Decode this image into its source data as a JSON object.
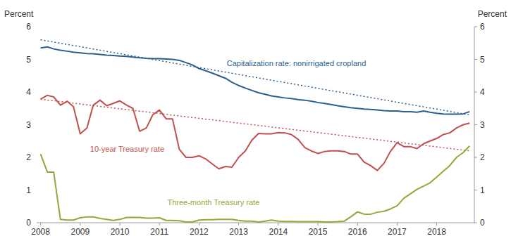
{
  "chart_data": {
    "type": "line",
    "ylabel": "Percent",
    "y2label": "Percent",
    "xlim": [
      2007.9,
      2018.95
    ],
    "xticks": [
      2008,
      2009,
      2010,
      2011,
      2012,
      2013,
      2014,
      2015,
      2016,
      2017,
      2018
    ],
    "ylim": [
      0,
      6
    ],
    "yticks": [
      0,
      1,
      2,
      3,
      4,
      5,
      6
    ],
    "y2lim": [
      0,
      6
    ],
    "y2ticks": [
      0,
      1,
      2,
      3,
      4,
      5,
      6
    ],
    "grid": false,
    "series": [
      {
        "color": "#2b5f8e",
        "line_style": "solid",
        "x": [
          2008.0,
          2008.17,
          2008.33,
          2008.5,
          2008.67,
          2008.83,
          2009.0,
          2009.17,
          2009.33,
          2009.5,
          2009.67,
          2009.83,
          2010.0,
          2010.17,
          2010.33,
          2010.5,
          2010.67,
          2010.83,
          2011.0,
          2011.17,
          2011.33,
          2011.5,
          2011.67,
          2011.83,
          2012.0,
          2012.17,
          2012.33,
          2012.5,
          2012.67,
          2012.83,
          2013.0,
          2013.17,
          2013.33,
          2013.5,
          2013.67,
          2013.83,
          2014.0,
          2014.17,
          2014.33,
          2014.5,
          2014.67,
          2014.83,
          2015.0,
          2015.17,
          2015.33,
          2015.5,
          2015.67,
          2015.83,
          2016.0,
          2016.17,
          2016.33,
          2016.5,
          2016.67,
          2016.83,
          2017.0,
          2017.17,
          2017.33,
          2017.5,
          2017.67,
          2017.83,
          2018.0,
          2018.17,
          2018.33,
          2018.5,
          2018.67,
          2018.83
        ],
        "values": [
          5.35,
          5.38,
          5.32,
          5.28,
          5.25,
          5.22,
          5.2,
          5.18,
          5.17,
          5.15,
          5.13,
          5.12,
          5.1,
          5.09,
          5.07,
          5.05,
          5.03,
          5.02,
          5.02,
          5.01,
          5.0,
          4.97,
          4.9,
          4.83,
          4.72,
          4.65,
          4.58,
          4.5,
          4.42,
          4.3,
          4.2,
          4.12,
          4.05,
          3.98,
          3.93,
          3.88,
          3.85,
          3.82,
          3.8,
          3.77,
          3.75,
          3.72,
          3.68,
          3.65,
          3.62,
          3.58,
          3.55,
          3.52,
          3.5,
          3.48,
          3.47,
          3.45,
          3.43,
          3.42,
          3.42,
          3.4,
          3.4,
          3.38,
          3.42,
          3.38,
          3.35,
          3.33,
          3.32,
          3.32,
          3.33,
          3.4
        ]
      },
      {
        "color": "#2b5f8e",
        "line_style": "dotted",
        "x": [
          2008.0,
          2018.83
        ],
        "values": [
          5.6,
          3.3
        ]
      },
      {
        "color": "#c0504d",
        "line_style": "solid",
        "x": [
          2008.0,
          2008.17,
          2008.33,
          2008.5,
          2008.67,
          2008.83,
          2009.0,
          2009.17,
          2009.33,
          2009.5,
          2009.67,
          2009.83,
          2010.0,
          2010.17,
          2010.33,
          2010.5,
          2010.67,
          2010.83,
          2011.0,
          2011.17,
          2011.33,
          2011.5,
          2011.67,
          2011.83,
          2012.0,
          2012.17,
          2012.33,
          2012.5,
          2012.67,
          2012.83,
          2013.0,
          2013.17,
          2013.33,
          2013.5,
          2013.67,
          2013.83,
          2014.0,
          2014.17,
          2014.33,
          2014.5,
          2014.67,
          2014.83,
          2015.0,
          2015.17,
          2015.33,
          2015.5,
          2015.67,
          2015.83,
          2016.0,
          2016.17,
          2016.33,
          2016.5,
          2016.67,
          2016.83,
          2017.0,
          2017.17,
          2017.33,
          2017.5,
          2017.67,
          2017.83,
          2018.0,
          2018.17,
          2018.33,
          2018.5,
          2018.67,
          2018.83
        ],
        "values": [
          3.78,
          3.9,
          3.85,
          3.6,
          3.72,
          3.55,
          2.72,
          2.9,
          3.6,
          3.75,
          3.58,
          3.65,
          3.73,
          3.6,
          3.5,
          2.8,
          2.9,
          3.3,
          3.45,
          3.18,
          3.18,
          2.25,
          2.0,
          2.0,
          2.05,
          1.95,
          1.8,
          1.65,
          1.72,
          1.7,
          2.0,
          2.2,
          2.52,
          2.73,
          2.72,
          2.72,
          2.76,
          2.75,
          2.7,
          2.55,
          2.3,
          2.2,
          2.12,
          2.18,
          2.2,
          2.2,
          2.18,
          2.1,
          2.1,
          1.85,
          1.75,
          1.6,
          1.82,
          2.18,
          2.45,
          2.33,
          2.33,
          2.27,
          2.42,
          2.5,
          2.58,
          2.7,
          2.75,
          2.9,
          3.0,
          3.05
        ]
      },
      {
        "color": "#c0504d",
        "line_style": "dotted",
        "x": [
          2008.0,
          2018.83
        ],
        "values": [
          3.78,
          2.2
        ]
      },
      {
        "color": "#8faa3a",
        "line_style": "solid",
        "x": [
          2008.0,
          2008.17,
          2008.33,
          2008.5,
          2008.67,
          2008.83,
          2009.0,
          2009.17,
          2009.33,
          2009.5,
          2009.67,
          2009.83,
          2010.0,
          2010.17,
          2010.33,
          2010.5,
          2010.67,
          2010.83,
          2011.0,
          2011.17,
          2011.33,
          2011.5,
          2011.67,
          2011.83,
          2012.0,
          2012.17,
          2012.33,
          2012.5,
          2012.67,
          2012.83,
          2013.0,
          2013.17,
          2013.33,
          2013.5,
          2013.67,
          2013.83,
          2014.0,
          2014.17,
          2014.33,
          2014.5,
          2014.67,
          2014.83,
          2015.0,
          2015.17,
          2015.33,
          2015.5,
          2015.67,
          2015.83,
          2016.0,
          2016.17,
          2016.33,
          2016.5,
          2016.67,
          2016.83,
          2017.0,
          2017.17,
          2017.33,
          2017.5,
          2017.67,
          2017.83,
          2018.0,
          2018.17,
          2018.33,
          2018.5,
          2018.67,
          2018.83
        ],
        "values": [
          2.1,
          1.55,
          1.55,
          0.1,
          0.08,
          0.08,
          0.15,
          0.18,
          0.18,
          0.13,
          0.1,
          0.07,
          0.1,
          0.16,
          0.16,
          0.16,
          0.14,
          0.14,
          0.15,
          0.07,
          0.07,
          0.06,
          0.02,
          0.02,
          0.08,
          0.09,
          0.09,
          0.1,
          0.1,
          0.1,
          0.07,
          0.05,
          0.05,
          0.02,
          0.05,
          0.08,
          0.05,
          0.04,
          0.04,
          0.03,
          0.03,
          0.03,
          0.03,
          0.02,
          0.02,
          0.03,
          0.05,
          0.18,
          0.33,
          0.26,
          0.26,
          0.32,
          0.35,
          0.42,
          0.52,
          0.75,
          0.88,
          1.02,
          1.12,
          1.22,
          1.4,
          1.58,
          1.75,
          2.0,
          2.15,
          2.35
        ]
      }
    ],
    "annotations": [
      {
        "text": "Capitalization rate: nonirrigated cropland",
        "x": 2012.7,
        "y": 4.88,
        "color": "#2b5f8e"
      },
      {
        "text": "10-year Treasury rate",
        "x": 2009.25,
        "y": 2.25,
        "color": "#c0504d"
      },
      {
        "text": "Three-month Treasury rate",
        "x": 2011.2,
        "y": 0.62,
        "color": "#8faa3a"
      }
    ]
  }
}
